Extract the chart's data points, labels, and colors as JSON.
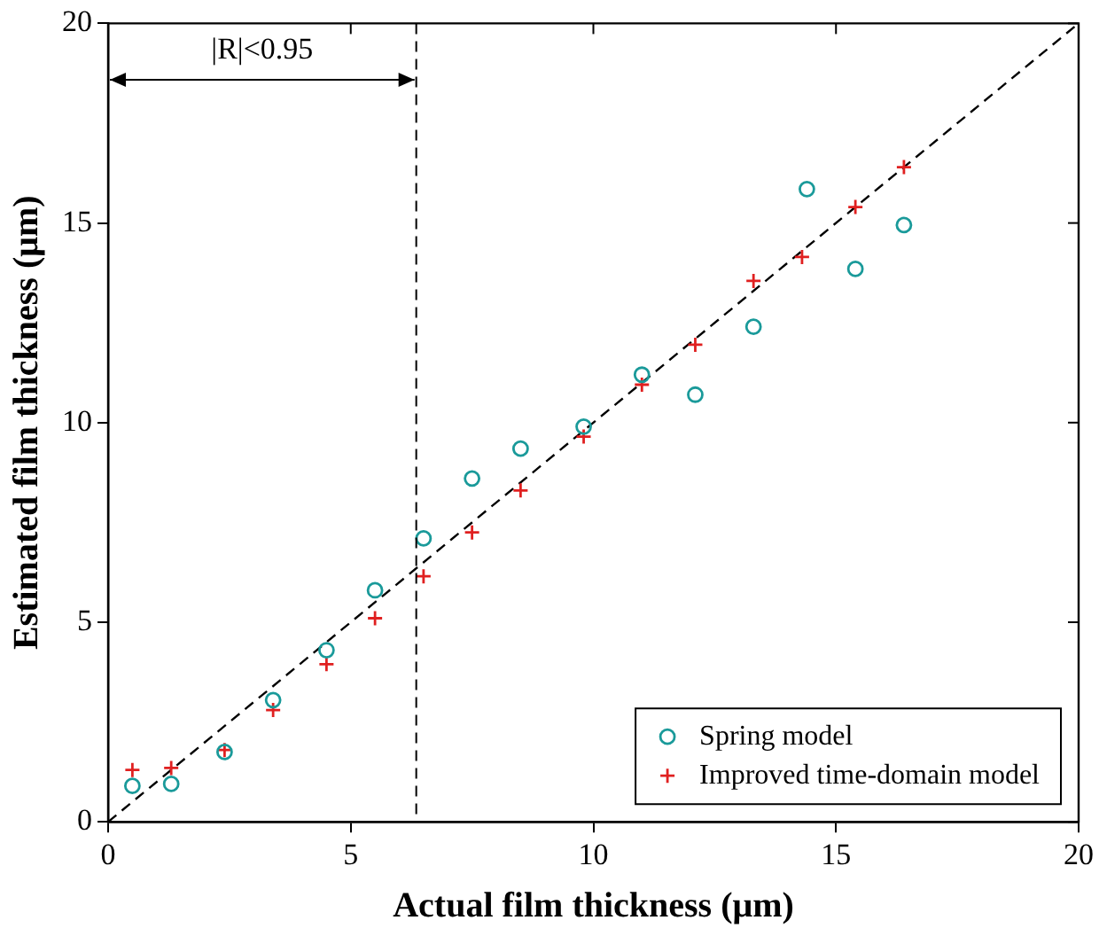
{
  "chart_data": {
    "type": "scatter",
    "xlabel": "Actual film thickness (μm)",
    "ylabel": "Estimated film thickness (μm)",
    "xlim": [
      0,
      20
    ],
    "ylim": [
      0,
      20
    ],
    "xticks": [
      0,
      5,
      10,
      15,
      20
    ],
    "yticks": [
      0,
      5,
      10,
      15,
      20
    ],
    "grid": false,
    "legend": "bottom right",
    "series": [
      {
        "name": "Spring model",
        "marker": "circle",
        "color": "#1a9a9a",
        "x": [
          0.5,
          1.3,
          2.4,
          3.4,
          4.5,
          5.5,
          6.5,
          7.5,
          8.5,
          9.8,
          11,
          12.1,
          13.3,
          14.4,
          15.4,
          16.4
        ],
        "values": [
          0.9,
          0.95,
          1.75,
          3.05,
          4.3,
          5.8,
          7.1,
          8.6,
          9.35,
          9.9,
          11.2,
          10.7,
          12.4,
          15.85,
          13.85,
          14.95
        ]
      },
      {
        "name": "Improved time-domain model",
        "marker": "cross",
        "color": "#e02020",
        "x": [
          0.5,
          1.3,
          2.4,
          3.4,
          4.5,
          5.5,
          6.5,
          7.5,
          8.5,
          9.8,
          11,
          12.1,
          13.3,
          14.3,
          15.4,
          16.4
        ],
        "values": [
          1.3,
          1.35,
          1.8,
          2.8,
          3.95,
          5.1,
          6.15,
          7.25,
          8.3,
          9.65,
          10.95,
          11.95,
          13.55,
          14.15,
          15.4,
          16.4
        ]
      },
      {
        "type": "line",
        "marker": "none",
        "line_style": "dashed",
        "color": "#000000",
        "x": [
          0,
          20
        ],
        "values": [
          0,
          20
        ]
      }
    ],
    "ref_lines": [
      {
        "axis": "x",
        "value": 6.35,
        "line_style": "dashed",
        "color": "#000000"
      }
    ],
    "annotations": [
      "|R|<0.95"
    ]
  }
}
